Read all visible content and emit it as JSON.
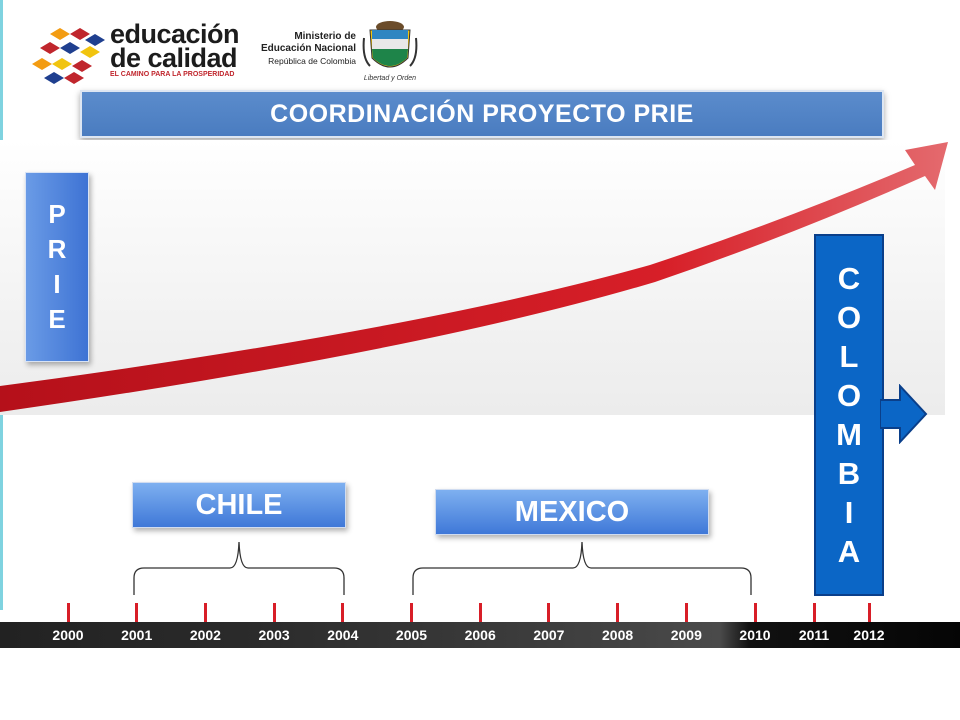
{
  "header": {
    "logo": {
      "line1": "educación",
      "line2": "de calidad",
      "tagline": "EL CAMINO PARA LA PROSPERIDAD"
    },
    "ministry": {
      "line1": "Ministerio de",
      "line2": "Educación Nacional",
      "line3": "República de Colombia"
    },
    "motto": "Libertad y Orden"
  },
  "title": "COORDINACIÓN PROYECTO PRIE",
  "prie_letters": [
    "P",
    "R",
    "I",
    "E"
  ],
  "colombia_letters": [
    "C",
    "O",
    "L",
    "O",
    "M",
    "B",
    "I",
    "A"
  ],
  "countries": [
    {
      "label": "CHILE",
      "start": 2001,
      "end": 2004
    },
    {
      "label": "MEXICO",
      "start": 2005,
      "end": 2010
    }
  ],
  "timeline": {
    "years": [
      2000,
      2001,
      2002,
      2003,
      2004,
      2005,
      2006,
      2007,
      2008,
      2009,
      2010,
      2011,
      2012
    ]
  },
  "colors": {
    "title_bar": "#4a7cc0",
    "arrow_red": "#c4121c",
    "colombia_blue": "#0b66c6",
    "tick_red": "#d81e28"
  }
}
